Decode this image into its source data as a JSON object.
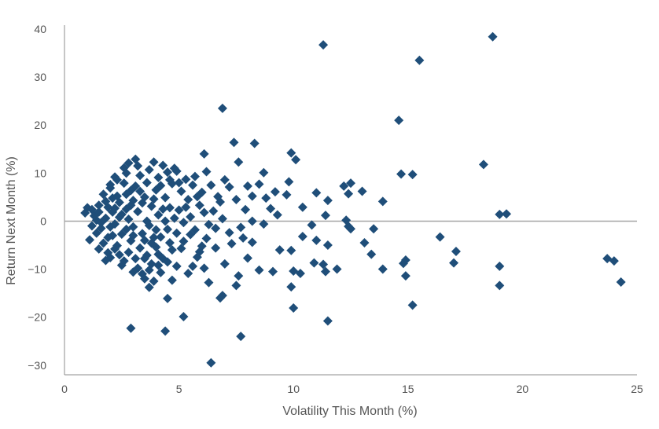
{
  "chart_data": {
    "type": "scatter",
    "xlabel": "Volatility This Month (%)",
    "ylabel": "Return Next Month (%)",
    "xlim": [
      0,
      25
    ],
    "ylim": [
      -32,
      40
    ],
    "x_ticks": [
      0,
      5,
      10,
      15,
      20,
      25
    ],
    "y_ticks": [
      -30,
      -20,
      -10,
      0,
      10,
      20,
      30,
      40
    ],
    "x_tick_labels": [
      "0",
      "5",
      "10",
      "15",
      "20",
      "25"
    ],
    "y_tick_labels": [
      "−30",
      "−20",
      "−10",
      "0",
      "10",
      "20",
      "30",
      "40"
    ],
    "grid": false,
    "zero_line": true,
    "marker": "diamond",
    "colors": {
      "marker": "#1f4e79",
      "zero_line": "#a6a6a6",
      "axis": "#8c8c8c"
    },
    "series": [
      {
        "points": [
          [
            11.3,
            36.7
          ],
          [
            18.7,
            38.4
          ],
          [
            15.5,
            33.5
          ],
          [
            6.9,
            23.5
          ],
          [
            14.6,
            21.0
          ],
          [
            8.3,
            16.2
          ],
          [
            7.4,
            16.4
          ],
          [
            18.3,
            11.8
          ],
          [
            14.7,
            9.8
          ],
          [
            15.2,
            9.7
          ],
          [
            9.9,
            14.2
          ],
          [
            10.1,
            12.8
          ],
          [
            6.1,
            14.0
          ],
          [
            7.6,
            12.3
          ],
          [
            8.7,
            10.1
          ],
          [
            6.2,
            10.3
          ],
          [
            9.8,
            8.2
          ],
          [
            11.0,
            5.9
          ],
          [
            12.2,
            7.3
          ],
          [
            12.5,
            7.9
          ],
          [
            13.0,
            6.2
          ],
          [
            13.9,
            4.1
          ],
          [
            12.4,
            5.7
          ],
          [
            12.3,
            0.2
          ],
          [
            12.4,
            -1.1
          ],
          [
            12.5,
            -1.6
          ],
          [
            13.5,
            -1.6
          ],
          [
            11.5,
            4.3
          ],
          [
            19.0,
            1.4
          ],
          [
            19.3,
            1.5
          ],
          [
            16.4,
            -3.3
          ],
          [
            17.1,
            -6.3
          ],
          [
            17.0,
            -8.7
          ],
          [
            19.0,
            -9.4
          ],
          [
            19.0,
            -13.4
          ],
          [
            23.7,
            -7.8
          ],
          [
            24.0,
            -8.3
          ],
          [
            24.3,
            -12.7
          ],
          [
            15.2,
            -17.5
          ],
          [
            14.9,
            -8.1
          ],
          [
            14.8,
            -8.8
          ],
          [
            14.9,
            -11.4
          ],
          [
            13.9,
            -10.0
          ],
          [
            13.4,
            -6.9
          ],
          [
            13.1,
            -4.5
          ],
          [
            11.3,
            -9.0
          ],
          [
            11.4,
            -10.5
          ],
          [
            10.9,
            -8.7
          ],
          [
            11.0,
            -4.0
          ],
          [
            10.4,
            -3.2
          ],
          [
            9.9,
            -6.1
          ],
          [
            10.0,
            -10.4
          ],
          [
            10.3,
            -10.9
          ],
          [
            9.9,
            -13.7
          ],
          [
            10.0,
            -18.1
          ],
          [
            11.5,
            -20.8
          ],
          [
            7.7,
            -24.0
          ],
          [
            6.4,
            -29.5
          ],
          [
            4.4,
            -22.9
          ],
          [
            5.2,
            -19.9
          ],
          [
            2.9,
            -22.3
          ],
          [
            4.5,
            -16.1
          ],
          [
            6.8,
            -16.0
          ],
          [
            6.9,
            -15.5
          ],
          [
            7.5,
            -13.4
          ],
          [
            7.6,
            -11.4
          ],
          [
            8.5,
            -10.2
          ],
          [
            9.1,
            -10.5
          ],
          [
            9.4,
            -6.0
          ],
          [
            8.0,
            -7.7
          ],
          [
            7.3,
            -4.7
          ],
          [
            6.3,
            -12.8
          ],
          [
            6.1,
            -9.8
          ],
          [
            11.9,
            -10.0
          ],
          [
            10.8,
            -0.8
          ],
          [
            11.5,
            -5.0
          ],
          [
            8.7,
            -0.6
          ],
          [
            8.2,
            0.0
          ],
          [
            9.3,
            1.3
          ],
          [
            9.0,
            2.6
          ],
          [
            8.8,
            4.8
          ],
          [
            8.2,
            5.2
          ],
          [
            8.5,
            7.7
          ],
          [
            9.2,
            6.1
          ],
          [
            9.7,
            5.5
          ],
          [
            10.4,
            2.9
          ],
          [
            11.4,
            1.2
          ],
          [
            7.2,
            7.1
          ],
          [
            7.0,
            8.6
          ],
          [
            6.7,
            5.1
          ],
          [
            6.5,
            2.1
          ],
          [
            6.1,
            1.8
          ],
          [
            6.9,
            0.5
          ],
          [
            7.2,
            -2.4
          ],
          [
            7.7,
            -1.3
          ],
          [
            6.6,
            -5.6
          ],
          [
            7.8,
            -3.5
          ],
          [
            8.2,
            -4.4
          ],
          [
            6.0,
            -5.2
          ],
          [
            5.8,
            -7.5
          ],
          [
            5.6,
            -9.4
          ],
          [
            5.4,
            -10.9
          ],
          [
            4.7,
            -12.3
          ],
          [
            4.9,
            -9.4
          ],
          [
            4.2,
            -10.7
          ],
          [
            3.7,
            -13.8
          ],
          [
            3.4,
            -11.0
          ],
          [
            3.9,
            -12.5
          ],
          [
            3.2,
            -9.8
          ],
          [
            2.5,
            -9.2
          ],
          [
            1.9,
            -6.6
          ],
          [
            1.5,
            -5.8
          ],
          [
            1.1,
            -3.9
          ],
          [
            0.9,
            1.7
          ],
          [
            1.0,
            2.8
          ],
          [
            1.2,
            2.4
          ],
          [
            1.4,
            0.2
          ],
          [
            1.6,
            -1.5
          ],
          [
            1.8,
            4.1
          ],
          [
            2.0,
            6.9
          ],
          [
            2.2,
            9.2
          ],
          [
            2.6,
            11.1
          ],
          [
            2.8,
            12.1
          ],
          [
            3.1,
            12.9
          ],
          [
            3.9,
            12.3
          ],
          [
            4.3,
            11.6
          ],
          [
            4.5,
            10.2
          ],
          [
            4.9,
            10.4
          ],
          [
            5.3,
            8.7
          ],
          [
            5.6,
            7.5
          ],
          [
            5.8,
            5.1
          ],
          [
            5.9,
            3.3
          ],
          [
            5.5,
            0.9
          ],
          [
            5.7,
            -1.8
          ],
          [
            5.2,
            -4.2
          ],
          [
            4.7,
            -6.0
          ],
          [
            4.1,
            -6.9
          ],
          [
            3.5,
            -7.8
          ],
          [
            2.8,
            -6.5
          ],
          [
            2.3,
            -5.1
          ],
          [
            1.9,
            -3.4
          ],
          [
            2.0,
            -1.2
          ],
          [
            2.4,
            0.8
          ],
          [
            2.7,
            2.5
          ],
          [
            3.0,
            4.3
          ],
          [
            3.3,
            6.2
          ],
          [
            3.6,
            8.0
          ],
          [
            4.0,
            6.5
          ],
          [
            4.4,
            4.9
          ],
          [
            4.6,
            2.8
          ],
          [
            4.8,
            0.6
          ],
          [
            4.5,
            -1.7
          ],
          [
            4.2,
            -3.3
          ],
          [
            3.8,
            -4.6
          ],
          [
            3.3,
            -5.6
          ],
          [
            2.9,
            -4.1
          ],
          [
            2.5,
            -2.7
          ],
          [
            2.2,
            -0.6
          ],
          [
            2.1,
            1.9
          ],
          [
            2.4,
            3.9
          ],
          [
            2.7,
            5.6
          ],
          [
            3.1,
            7.3
          ],
          [
            3.5,
            5.0
          ],
          [
            3.8,
            3.1
          ],
          [
            4.1,
            1.3
          ],
          [
            3.7,
            -0.9
          ],
          [
            3.4,
            -2.6
          ],
          [
            3.0,
            -1.2
          ],
          [
            2.8,
            0.4
          ],
          [
            3.2,
            2.0
          ],
          [
            3.6,
            0.0
          ],
          [
            1.3,
            1.1
          ],
          [
            1.5,
            3.3
          ],
          [
            1.7,
            5.6
          ],
          [
            2.1,
            4.8
          ],
          [
            2.6,
            7.9
          ],
          [
            2.3,
            8.6
          ],
          [
            4.7,
            7.8
          ],
          [
            5.1,
            6.2
          ],
          [
            5.4,
            4.5
          ],
          [
            5.0,
            2.3
          ],
          [
            5.2,
            -0.3
          ],
          [
            4.9,
            -2.5
          ],
          [
            4.6,
            -4.5
          ],
          [
            4.0,
            -5.4
          ],
          [
            3.6,
            -7.1
          ],
          [
            3.1,
            -7.8
          ],
          [
            2.6,
            -8.3
          ],
          [
            2.0,
            -7.6
          ],
          [
            1.7,
            -4.6
          ],
          [
            1.4,
            -2.5
          ],
          [
            1.2,
            -1.0
          ],
          [
            1.8,
            0.6
          ],
          [
            2.2,
            2.7
          ],
          [
            2.9,
            3.3
          ],
          [
            3.4,
            3.8
          ],
          [
            3.9,
            4.6
          ],
          [
            4.3,
            2.5
          ],
          [
            4.4,
            0.0
          ],
          [
            4.0,
            -1.8
          ],
          [
            3.9,
            -3.4
          ],
          [
            3.5,
            -4.0
          ],
          [
            3.0,
            -3.0
          ],
          [
            2.7,
            -1.7
          ],
          [
            2.5,
            1.4
          ],
          [
            2.9,
            6.4
          ],
          [
            3.3,
            9.5
          ],
          [
            3.7,
            10.7
          ],
          [
            4.1,
            9.1
          ],
          [
            4.6,
            8.6
          ],
          [
            5.0,
            8.0
          ],
          [
            5.3,
            2.9
          ],
          [
            5.5,
            -2.8
          ],
          [
            5.1,
            -5.7
          ],
          [
            4.5,
            -8.5
          ],
          [
            4.1,
            -9.2
          ],
          [
            3.7,
            -10.2
          ],
          [
            3.0,
            -10.6
          ],
          [
            2.4,
            -7.0
          ],
          [
            2.1,
            -3.0
          ],
          [
            1.6,
            -0.3
          ],
          [
            1.5,
            1.9
          ],
          [
            1.9,
            2.9
          ],
          [
            2.3,
            5.2
          ],
          [
            2.0,
            7.6
          ],
          [
            6.4,
            7.5
          ],
          [
            6.8,
            4.0
          ],
          [
            6.6,
            -1.5
          ],
          [
            6.2,
            -3.6
          ],
          [
            5.9,
            -6.4
          ],
          [
            7.0,
            -8.9
          ],
          [
            7.9,
            2.4
          ],
          [
            8.0,
            7.3
          ],
          [
            7.5,
            4.5
          ],
          [
            6.3,
            -0.7
          ],
          [
            5.7,
            9.3
          ],
          [
            6.0,
            6.0
          ],
          [
            4.8,
            11.0
          ],
          [
            4.2,
            7.4
          ],
          [
            3.2,
            11.5
          ],
          [
            2.7,
            10.0
          ],
          [
            3.5,
            -12.0
          ],
          [
            3.8,
            -8.9
          ],
          [
            4.3,
            -7.8
          ],
          [
            2.2,
            -5.8
          ],
          [
            1.8,
            -8.2
          ]
        ]
      }
    ]
  }
}
